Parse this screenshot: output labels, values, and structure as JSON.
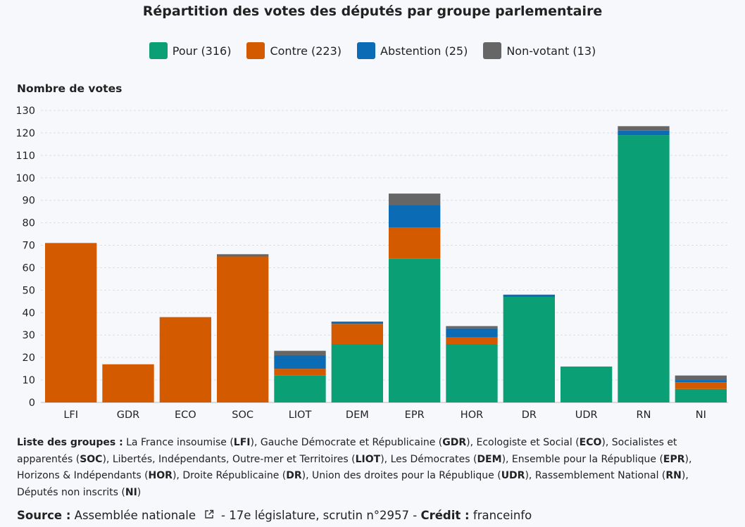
{
  "title": "Répartition des votes des députés par groupe parlementaire",
  "legend": [
    {
      "label": "Pour (316)",
      "color": "#0a9f74"
    },
    {
      "label": "Contre (223)",
      "color": "#d45a00"
    },
    {
      "label": "Abstention (25)",
      "color": "#0b6cb5"
    },
    {
      "label": "Non-votant (13)",
      "color": "#666666"
    }
  ],
  "chart_data": {
    "type": "bar",
    "stacked": true,
    "ylabel": "Nombre de votes",
    "ylim": [
      0,
      130
    ],
    "yticks": [
      0,
      10,
      20,
      30,
      40,
      50,
      60,
      70,
      80,
      90,
      100,
      110,
      120,
      130
    ],
    "grid": true,
    "categories": [
      "LFI",
      "GDR",
      "ECO",
      "SOC",
      "LIOT",
      "DEM",
      "EPR",
      "HOR",
      "DR",
      "UDR",
      "RN",
      "NI"
    ],
    "series": [
      {
        "name": "Pour",
        "color": "#0a9f74",
        "values": [
          0,
          0,
          0,
          0,
          12,
          26,
          64,
          26,
          47,
          16,
          119,
          6
        ]
      },
      {
        "name": "Contre",
        "color": "#d45a00",
        "values": [
          71,
          17,
          38,
          65,
          3,
          9,
          14,
          3,
          0,
          0,
          0,
          3
        ]
      },
      {
        "name": "Abstention",
        "color": "#0b6cb5",
        "values": [
          0,
          0,
          0,
          0,
          6,
          1,
          10,
          4,
          1,
          0,
          2,
          1
        ]
      },
      {
        "name": "Non-votant",
        "color": "#666666",
        "values": [
          0,
          0,
          0,
          1,
          2,
          0,
          5,
          1,
          0,
          0,
          2,
          2
        ]
      }
    ]
  },
  "groups_list": {
    "lead": "Liste des groupes :",
    "segments": [
      {
        "t": " La France insoumise (",
        "b": false
      },
      {
        "t": "LFI",
        "b": true
      },
      {
        "t": "), Gauche Démocrate et Républicaine (",
        "b": false
      },
      {
        "t": "GDR",
        "b": true
      },
      {
        "t": "), Ecologiste et Social (",
        "b": false
      },
      {
        "t": "ECO",
        "b": true
      },
      {
        "t": "), Socialistes et apparentés (",
        "b": false
      },
      {
        "t": "SOC",
        "b": true
      },
      {
        "t": "), Libertés, Indépendants, Outre-mer et Territoires (",
        "b": false
      },
      {
        "t": "LIOT",
        "b": true
      },
      {
        "t": "), Les Démocrates (",
        "b": false
      },
      {
        "t": "DEM",
        "b": true
      },
      {
        "t": "), Ensemble pour la République (",
        "b": false
      },
      {
        "t": "EPR",
        "b": true
      },
      {
        "t": "), Horizons & Indépendants (",
        "b": false
      },
      {
        "t": "HOR",
        "b": true
      },
      {
        "t": "), Droite Républicaine (",
        "b": false
      },
      {
        "t": "DR",
        "b": true
      },
      {
        "t": "), Union des droites pour la République (",
        "b": false
      },
      {
        "t": "UDR",
        "b": true
      },
      {
        "t": "), Rassemblement National (",
        "b": false
      },
      {
        "t": "RN",
        "b": true
      },
      {
        "t": "), Députés non inscrits (",
        "b": false
      },
      {
        "t": "NI",
        "b": true
      },
      {
        "t": ")",
        "b": false
      }
    ]
  },
  "footer": {
    "source_label": "Source :",
    "source_text": "Assemblée nationale",
    "external_icon": "external-link-icon",
    "middle_text": "- 17e législature, scrutin n°2957 -",
    "credit_label": "Crédit :",
    "credit_text": "franceinfo"
  }
}
